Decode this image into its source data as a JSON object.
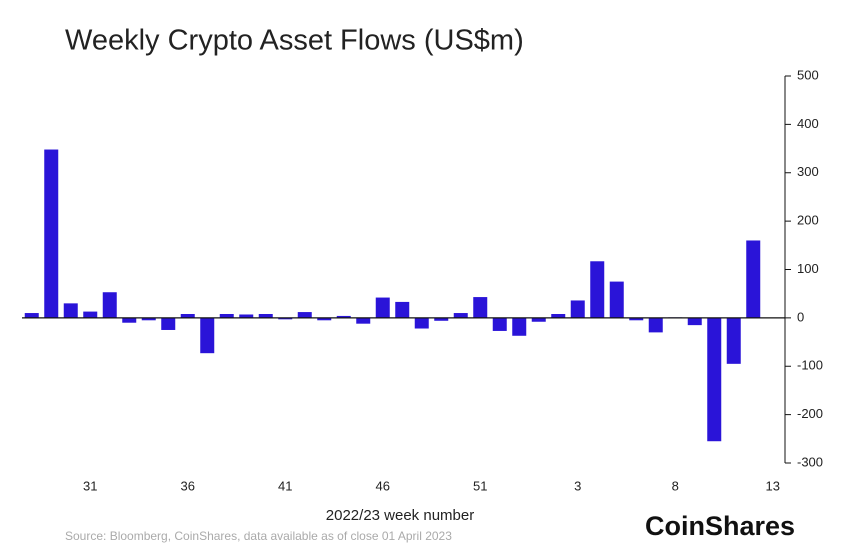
{
  "chart_data": {
    "type": "bar",
    "title": "Weekly Crypto Asset Flows (US$m)",
    "x_label": "2022/23 week number",
    "source": "Source: Bloomberg, CoinShares, data available as of close 01 April 2023",
    "logo": "CoinShares",
    "categories": [
      null,
      null,
      null,
      "31",
      null,
      null,
      null,
      null,
      "36",
      null,
      null,
      null,
      null,
      "41",
      null,
      null,
      null,
      null,
      "46",
      null,
      null,
      null,
      null,
      "51",
      null,
      null,
      null,
      null,
      "3",
      null,
      null,
      null,
      null,
      "8",
      null,
      null,
      null,
      null,
      "13"
    ],
    "values": [
      10,
      348,
      30,
      13,
      53,
      -10,
      -5,
      -25,
      8,
      -73,
      8,
      7,
      8,
      -3,
      12,
      -5,
      4,
      -12,
      42,
      33,
      -22,
      -6,
      10,
      43,
      -27,
      -37,
      -8,
      8,
      36,
      117,
      75,
      -5,
      -30,
      1,
      -15,
      -255,
      -95,
      160,
      null
    ],
    "color": "#2a14d8",
    "ylim": [
      -300,
      500
    ],
    "yticks": [
      -300,
      -200,
      -100,
      0,
      100,
      200,
      300,
      400,
      500
    ],
    "y_axis_side": "right"
  }
}
